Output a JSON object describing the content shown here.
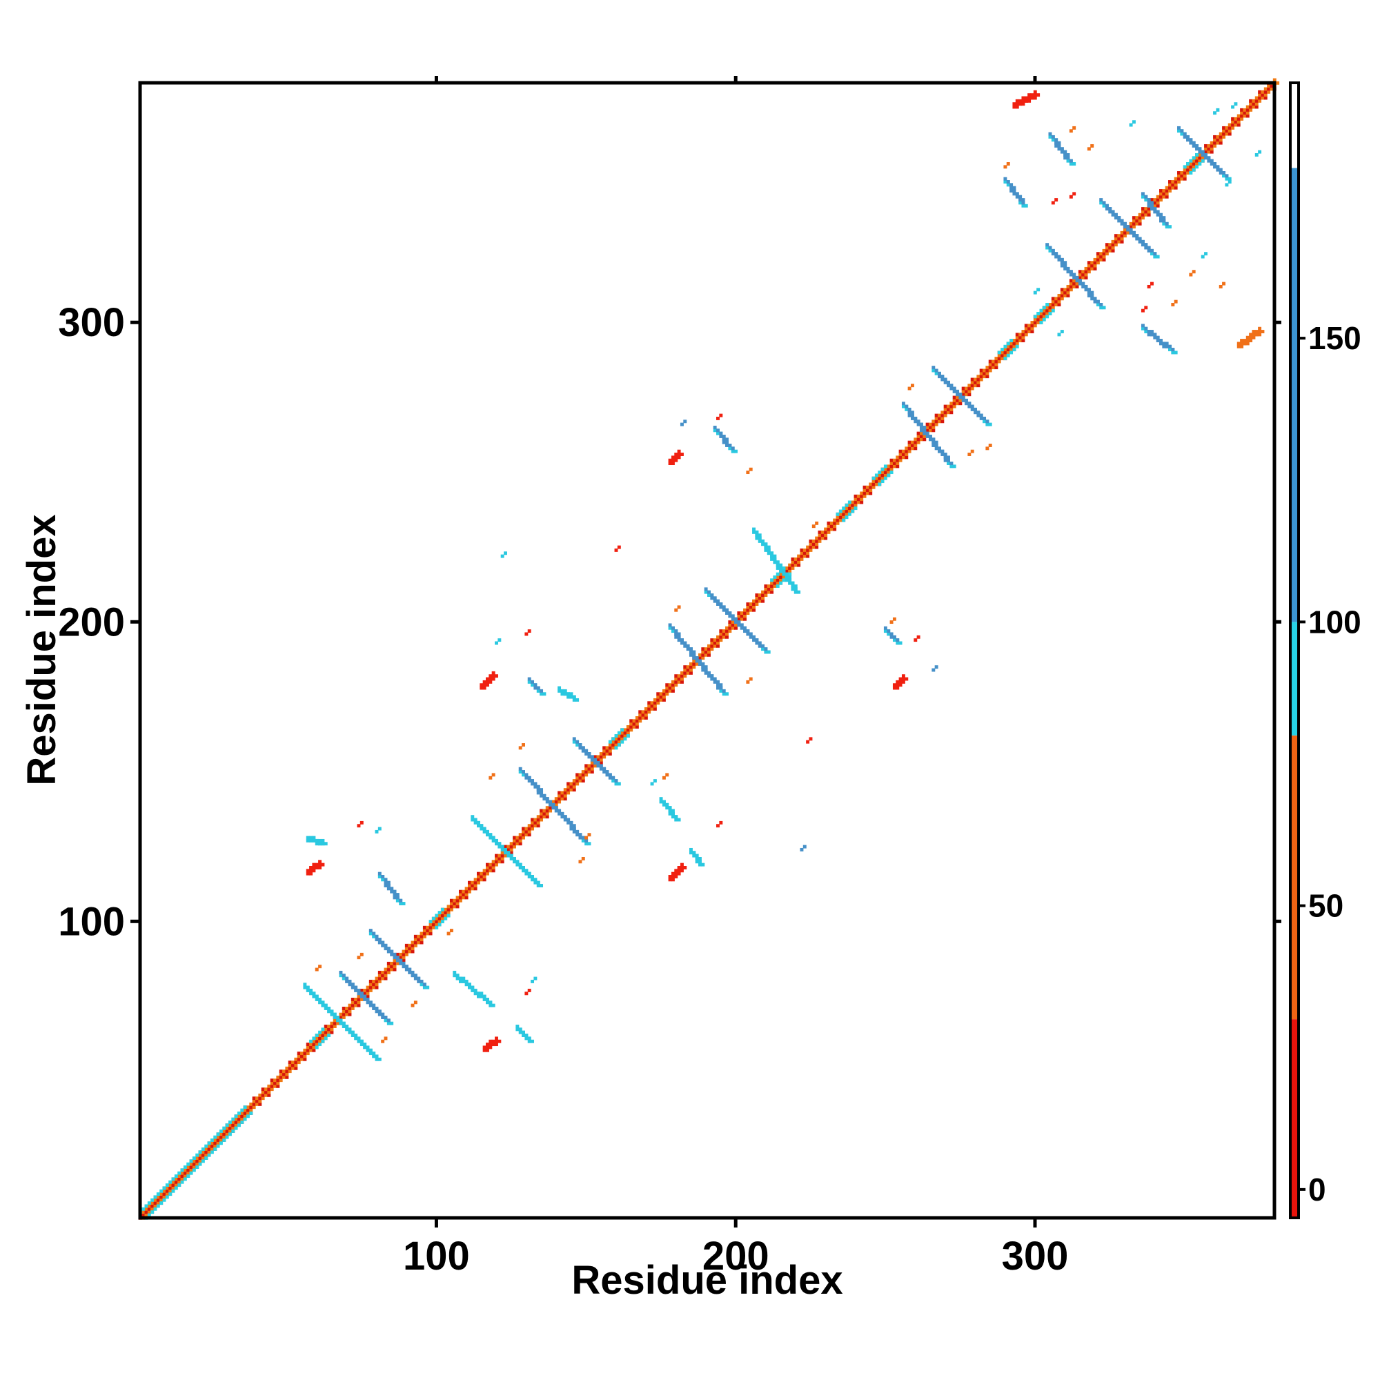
{
  "chart_data": {
    "type": "heatmap",
    "title": "",
    "xlabel": "Residue index",
    "ylabel": "Residue index",
    "xlim": [
      1,
      380
    ],
    "ylim": [
      1,
      380
    ],
    "xticks": [
      100,
      200,
      300
    ],
    "yticks": [
      100,
      200,
      300
    ],
    "colorbar": {
      "ticks": [
        0,
        50,
        100,
        150
      ],
      "range": [
        -5,
        195
      ],
      "bands": [
        {
          "from": -5,
          "to": 30,
          "color": "#e8140c"
        },
        {
          "from": 30,
          "to": 80,
          "color": "#f06414"
        },
        {
          "from": 80,
          "to": 100,
          "color": "#28d2e6"
        },
        {
          "from": 100,
          "to": 180,
          "color": "#3c96d2"
        },
        {
          "from": 180,
          "to": 195,
          "color": "#ffffff"
        }
      ]
    },
    "colors": {
      "diag_red": "#d7150c",
      "diag_orange": "#f07a14",
      "diag_cyan": "#2ad4e6",
      "contact_blue": "#4690c8",
      "contact_cyan": "#2ac8e0",
      "contact_red": "#f02010",
      "contact_orange": "#f07018"
    },
    "strands": [
      {
        "x": [
          56,
          80
        ],
        "y": [
          78,
          54
        ],
        "c": "contact_cyan"
      },
      {
        "x": [
          68,
          84
        ],
        "y": [
          82,
          66
        ],
        "c": "contact_blue"
      },
      {
        "x": [
          78,
          96
        ],
        "y": [
          96,
          78
        ],
        "c": "contact_blue"
      },
      {
        "x": [
          112,
          134
        ],
        "y": [
          134,
          112
        ],
        "c": "contact_cyan"
      },
      {
        "x": [
          128,
          150
        ],
        "y": [
          150,
          126
        ],
        "c": "contact_blue"
      },
      {
        "x": [
          146,
          160
        ],
        "y": [
          160,
          146
        ],
        "c": "contact_blue"
      },
      {
        "x": [
          178,
          196
        ],
        "y": [
          198,
          176
        ],
        "c": "contact_blue"
      },
      {
        "x": [
          190,
          210
        ],
        "y": [
          210,
          190
        ],
        "c": "contact_blue"
      },
      {
        "x": [
          206,
          220
        ],
        "y": [
          230,
          210
        ],
        "c": "contact_cyan"
      },
      {
        "x": [
          256,
          272
        ],
        "y": [
          272,
          252
        ],
        "c": "contact_blue"
      },
      {
        "x": [
          266,
          284
        ],
        "y": [
          284,
          266
        ],
        "c": "contact_blue"
      },
      {
        "x": [
          304,
          322
        ],
        "y": [
          325,
          305
        ],
        "c": "contact_blue"
      },
      {
        "x": [
          322,
          340
        ],
        "y": [
          340,
          322
        ],
        "c": "contact_blue"
      },
      {
        "x": [
          348,
          364
        ],
        "y": [
          364,
          348
        ],
        "c": "contact_blue"
      },
      {
        "x": [
          81,
          88
        ],
        "y": [
          115,
          106
        ],
        "c": "contact_blue"
      },
      {
        "x": [
          106,
          118
        ],
        "y": [
          82,
          72
        ],
        "c": "contact_cyan"
      },
      {
        "x": [
          127,
          131
        ],
        "y": [
          64,
          60
        ],
        "c": "contact_cyan"
      },
      {
        "x": [
          131,
          135
        ],
        "y": [
          180,
          176
        ],
        "c": "contact_blue"
      },
      {
        "x": [
          175,
          180
        ],
        "y": [
          140,
          134
        ],
        "c": "contact_cyan"
      },
      {
        "x": [
          185,
          188
        ],
        "y": [
          123,
          119
        ],
        "c": "contact_cyan"
      },
      {
        "x": [
          193,
          199
        ],
        "y": [
          264,
          257
        ],
        "c": "contact_blue"
      },
      {
        "x": [
          250,
          254
        ],
        "y": [
          197,
          193
        ],
        "c": "contact_blue"
      },
      {
        "x": [
          290,
          296
        ],
        "y": [
          347,
          339
        ],
        "c": "contact_blue"
      },
      {
        "x": [
          305,
          312
        ],
        "y": [
          362,
          353
        ],
        "c": "contact_blue"
      },
      {
        "x": [
          336,
          344
        ],
        "y": [
          342,
          332
        ],
        "c": "contact_blue"
      },
      {
        "x": [
          336,
          346
        ],
        "y": [
          298,
          290
        ],
        "c": "contact_blue"
      },
      {
        "x": [
          57,
          62
        ],
        "y": [
          127,
          126
        ],
        "c": "contact_cyan"
      },
      {
        "x": [
          141,
          146
        ],
        "y": [
          177,
          174
        ],
        "c": "contact_cyan"
      }
    ],
    "red_blobs": [
      {
        "x": [
          57,
          61
        ],
        "y": [
          116,
          119
        ],
        "c": "contact_red"
      },
      {
        "x": [
          116,
          120
        ],
        "y": [
          57,
          60
        ],
        "c": "contact_red"
      },
      {
        "x": [
          115,
          119
        ],
        "y": [
          178,
          182
        ],
        "c": "contact_red"
      },
      {
        "x": [
          178,
          182
        ],
        "y": [
          114,
          118
        ],
        "c": "contact_red"
      },
      {
        "x": [
          178,
          181
        ],
        "y": [
          253,
          256
        ],
        "c": "contact_red"
      },
      {
        "x": [
          253,
          256
        ],
        "y": [
          178,
          181
        ],
        "c": "contact_red"
      },
      {
        "x": [
          293,
          300
        ],
        "y": [
          372,
          376
        ],
        "c": "contact_red"
      },
      {
        "x": [
          368,
          375
        ],
        "y": [
          292,
          297
        ],
        "c": "contact_orange"
      }
    ],
    "specks": [
      {
        "x": 74,
        "y": 88,
        "c": "contact_orange"
      },
      {
        "x": 60,
        "y": 84,
        "c": "contact_orange"
      },
      {
        "x": 82,
        "y": 60,
        "c": "contact_orange"
      },
      {
        "x": 92,
        "y": 72,
        "c": "contact_orange"
      },
      {
        "x": 104,
        "y": 96,
        "c": "contact_orange"
      },
      {
        "x": 130,
        "y": 76,
        "c": "contact_red"
      },
      {
        "x": 132,
        "y": 80,
        "c": "contact_cyan"
      },
      {
        "x": 74,
        "y": 132,
        "c": "contact_red"
      },
      {
        "x": 80,
        "y": 130,
        "c": "contact_cyan"
      },
      {
        "x": 118,
        "y": 148,
        "c": "contact_orange"
      },
      {
        "x": 128,
        "y": 158,
        "c": "contact_orange"
      },
      {
        "x": 148,
        "y": 120,
        "c": "contact_orange"
      },
      {
        "x": 150,
        "y": 128,
        "c": "contact_orange"
      },
      {
        "x": 122,
        "y": 222,
        "c": "contact_cyan"
      },
      {
        "x": 160,
        "y": 224,
        "c": "contact_red"
      },
      {
        "x": 120,
        "y": 193,
        "c": "contact_cyan"
      },
      {
        "x": 130,
        "y": 196,
        "c": "contact_red"
      },
      {
        "x": 172,
        "y": 146,
        "c": "contact_cyan"
      },
      {
        "x": 176,
        "y": 148,
        "c": "contact_orange"
      },
      {
        "x": 194,
        "y": 132,
        "c": "contact_red"
      },
      {
        "x": 222,
        "y": 124,
        "c": "contact_blue"
      },
      {
        "x": 224,
        "y": 160,
        "c": "contact_red"
      },
      {
        "x": 180,
        "y": 204,
        "c": "contact_orange"
      },
      {
        "x": 204,
        "y": 180,
        "c": "contact_orange"
      },
      {
        "x": 182,
        "y": 266,
        "c": "contact_blue"
      },
      {
        "x": 194,
        "y": 268,
        "c": "contact_red"
      },
      {
        "x": 204,
        "y": 250,
        "c": "contact_orange"
      },
      {
        "x": 260,
        "y": 194,
        "c": "contact_red"
      },
      {
        "x": 266,
        "y": 184,
        "c": "contact_blue"
      },
      {
        "x": 252,
        "y": 200,
        "c": "contact_orange"
      },
      {
        "x": 226,
        "y": 232,
        "c": "contact_orange"
      },
      {
        "x": 258,
        "y": 278,
        "c": "contact_orange"
      },
      {
        "x": 278,
        "y": 256,
        "c": "contact_orange"
      },
      {
        "x": 284,
        "y": 258,
        "c": "contact_orange"
      },
      {
        "x": 290,
        "y": 352,
        "c": "contact_orange"
      },
      {
        "x": 312,
        "y": 364,
        "c": "contact_orange"
      },
      {
        "x": 318,
        "y": 358,
        "c": "contact_orange"
      },
      {
        "x": 306,
        "y": 340,
        "c": "contact_red"
      },
      {
        "x": 312,
        "y": 342,
        "c": "contact_red"
      },
      {
        "x": 364,
        "y": 346,
        "c": "contact_cyan"
      },
      {
        "x": 374,
        "y": 356,
        "c": "contact_cyan"
      },
      {
        "x": 366,
        "y": 372,
        "c": "contact_cyan"
      },
      {
        "x": 346,
        "y": 306,
        "c": "contact_orange"
      },
      {
        "x": 352,
        "y": 316,
        "c": "contact_orange"
      },
      {
        "x": 362,
        "y": 312,
        "c": "contact_orange"
      },
      {
        "x": 336,
        "y": 304,
        "c": "contact_red"
      },
      {
        "x": 338,
        "y": 312,
        "c": "contact_red"
      },
      {
        "x": 300,
        "y": 310,
        "c": "contact_cyan"
      },
      {
        "x": 308,
        "y": 296,
        "c": "contact_cyan"
      },
      {
        "x": 332,
        "y": 366,
        "c": "contact_cyan"
      },
      {
        "x": 360,
        "y": 370,
        "c": "contact_cyan"
      },
      {
        "x": 356,
        "y": 322,
        "c": "contact_cyan"
      }
    ],
    "diag_knots": [
      {
        "x": [
          1,
          36
        ],
        "c": "diag_cyan"
      },
      {
        "x": 60,
        "c": "diag_cyan"
      },
      {
        "x": 100,
        "c": "diag_cyan"
      },
      {
        "x": 160,
        "c": "diag_cyan"
      },
      {
        "x": 214,
        "c": "diag_cyan"
      },
      {
        "x": 236,
        "c": "diag_cyan"
      },
      {
        "x": 248,
        "c": "diag_cyan"
      },
      {
        "x": 290,
        "c": "diag_cyan"
      },
      {
        "x": 302,
        "c": "diag_cyan"
      },
      {
        "x": 352,
        "c": "diag_cyan"
      }
    ]
  }
}
